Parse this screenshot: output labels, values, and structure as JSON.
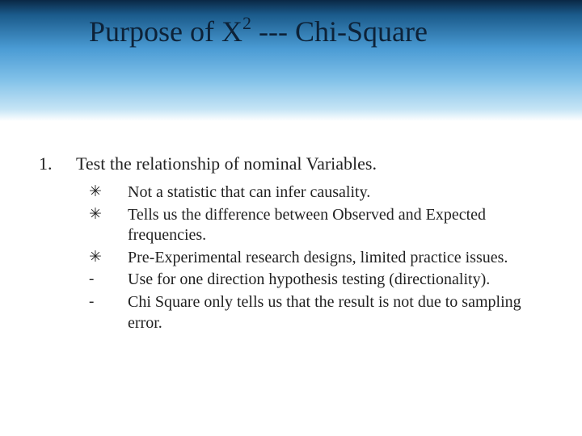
{
  "header": {
    "title_pre": "Purpose of X",
    "title_sup": "2",
    "title_post": " --- Chi-Square"
  },
  "list": {
    "number": "1.",
    "text": "Test the relationship of nominal Variables.",
    "items": [
      {
        "bullet": "✳",
        "text": "Not a statistic that can infer causality."
      },
      {
        "bullet": "✳",
        "text": "Tells us the difference between Observed and Expected frequencies."
      },
      {
        "bullet": "✳",
        "text": "Pre-Experimental research designs, limited practice issues."
      },
      {
        "bullet": "-",
        "text": "Use for one direction hypothesis testing (directionality)."
      },
      {
        "bullet": "-",
        "text": "Chi Square only tells us that the result is not due to sampling error."
      }
    ]
  },
  "colors": {
    "background": "#ffffff",
    "text": "#222222",
    "gradient_top": "#0a2845",
    "gradient_mid": "#4a9bd4",
    "gradient_bottom": "#ffffff"
  }
}
